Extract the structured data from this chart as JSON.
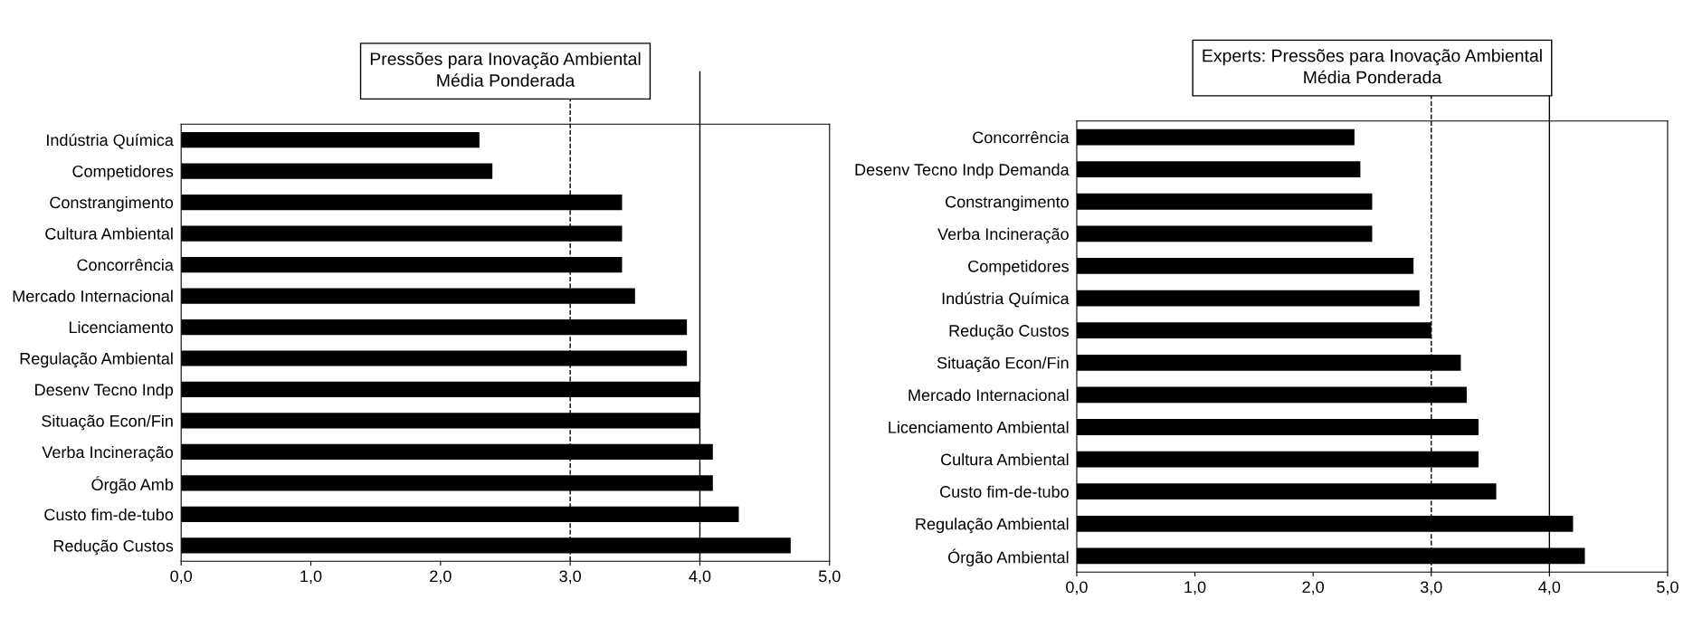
{
  "chart_data": [
    {
      "type": "bar",
      "orientation": "horizontal",
      "title": "Pressões para Inovação Ambiental\nMédia Ponderada",
      "categories": [
        "Indústria Química",
        "Competidores",
        "Constrangimento",
        "Cultura Ambiental",
        "Concorrência",
        "Mercado Internacional",
        "Licenciamento",
        "Regulação Ambiental",
        "Desenv Tecno Indp",
        "Situação Econ/Fin",
        "Verba Incineração",
        "Órgão Amb",
        "Custo fim-de-tubo",
        "Redução Custos"
      ],
      "values": [
        2.3,
        2.4,
        3.4,
        3.4,
        3.4,
        3.5,
        3.9,
        3.9,
        4.0,
        4.0,
        4.1,
        4.1,
        4.3,
        4.7
      ],
      "color": "#000000",
      "xlim": [
        0,
        5
      ],
      "xticks": [
        {
          "value": 0,
          "label": "0,0"
        },
        {
          "value": 1,
          "label": "1,0"
        },
        {
          "value": 2,
          "label": "2,0"
        },
        {
          "value": 3,
          "label": "3,0"
        },
        {
          "value": 4,
          "label": "4,0"
        },
        {
          "value": 5,
          "label": "5,0"
        }
      ],
      "ref_lines": [
        {
          "axis": "x",
          "value": 3,
          "line_style": "dashed",
          "color": "#000000"
        },
        {
          "axis": "x",
          "value": 4,
          "line_style": "solid",
          "color": "#000000"
        }
      ],
      "grid": false,
      "legend": false
    },
    {
      "type": "bar",
      "orientation": "horizontal",
      "title": "Experts: Pressões para Inovação Ambiental\nMédia Ponderada",
      "categories": [
        "Concorrência",
        "Desenv Tecno Indp Demanda",
        "Constrangimento",
        "Verba Incineração",
        "Competidores",
        "Indústria Química",
        "Redução Custos",
        "Situação Econ/Fin",
        "Mercado Internacional",
        "Licenciamento Ambiental",
        "Cultura Ambiental",
        "Custo fim-de-tubo",
        "Regulação Ambiental",
        "Órgão Ambiental"
      ],
      "values": [
        2.35,
        2.4,
        2.5,
        2.5,
        2.85,
        2.9,
        3.0,
        3.25,
        3.3,
        3.4,
        3.4,
        3.55,
        4.2,
        4.3
      ],
      "color": "#000000",
      "xlim": [
        0,
        5
      ],
      "xticks": [
        {
          "value": 0,
          "label": "0,0"
        },
        {
          "value": 1,
          "label": "1,0"
        },
        {
          "value": 2,
          "label": "2,0"
        },
        {
          "value": 3,
          "label": "3,0"
        },
        {
          "value": 4,
          "label": "4,0"
        },
        {
          "value": 5,
          "label": "5,0"
        }
      ],
      "ref_lines": [
        {
          "axis": "x",
          "value": 3,
          "line_style": "dashed",
          "color": "#000000"
        },
        {
          "axis": "x",
          "value": 4,
          "line_style": "solid",
          "color": "#000000"
        }
      ],
      "grid": false,
      "legend": false
    }
  ]
}
